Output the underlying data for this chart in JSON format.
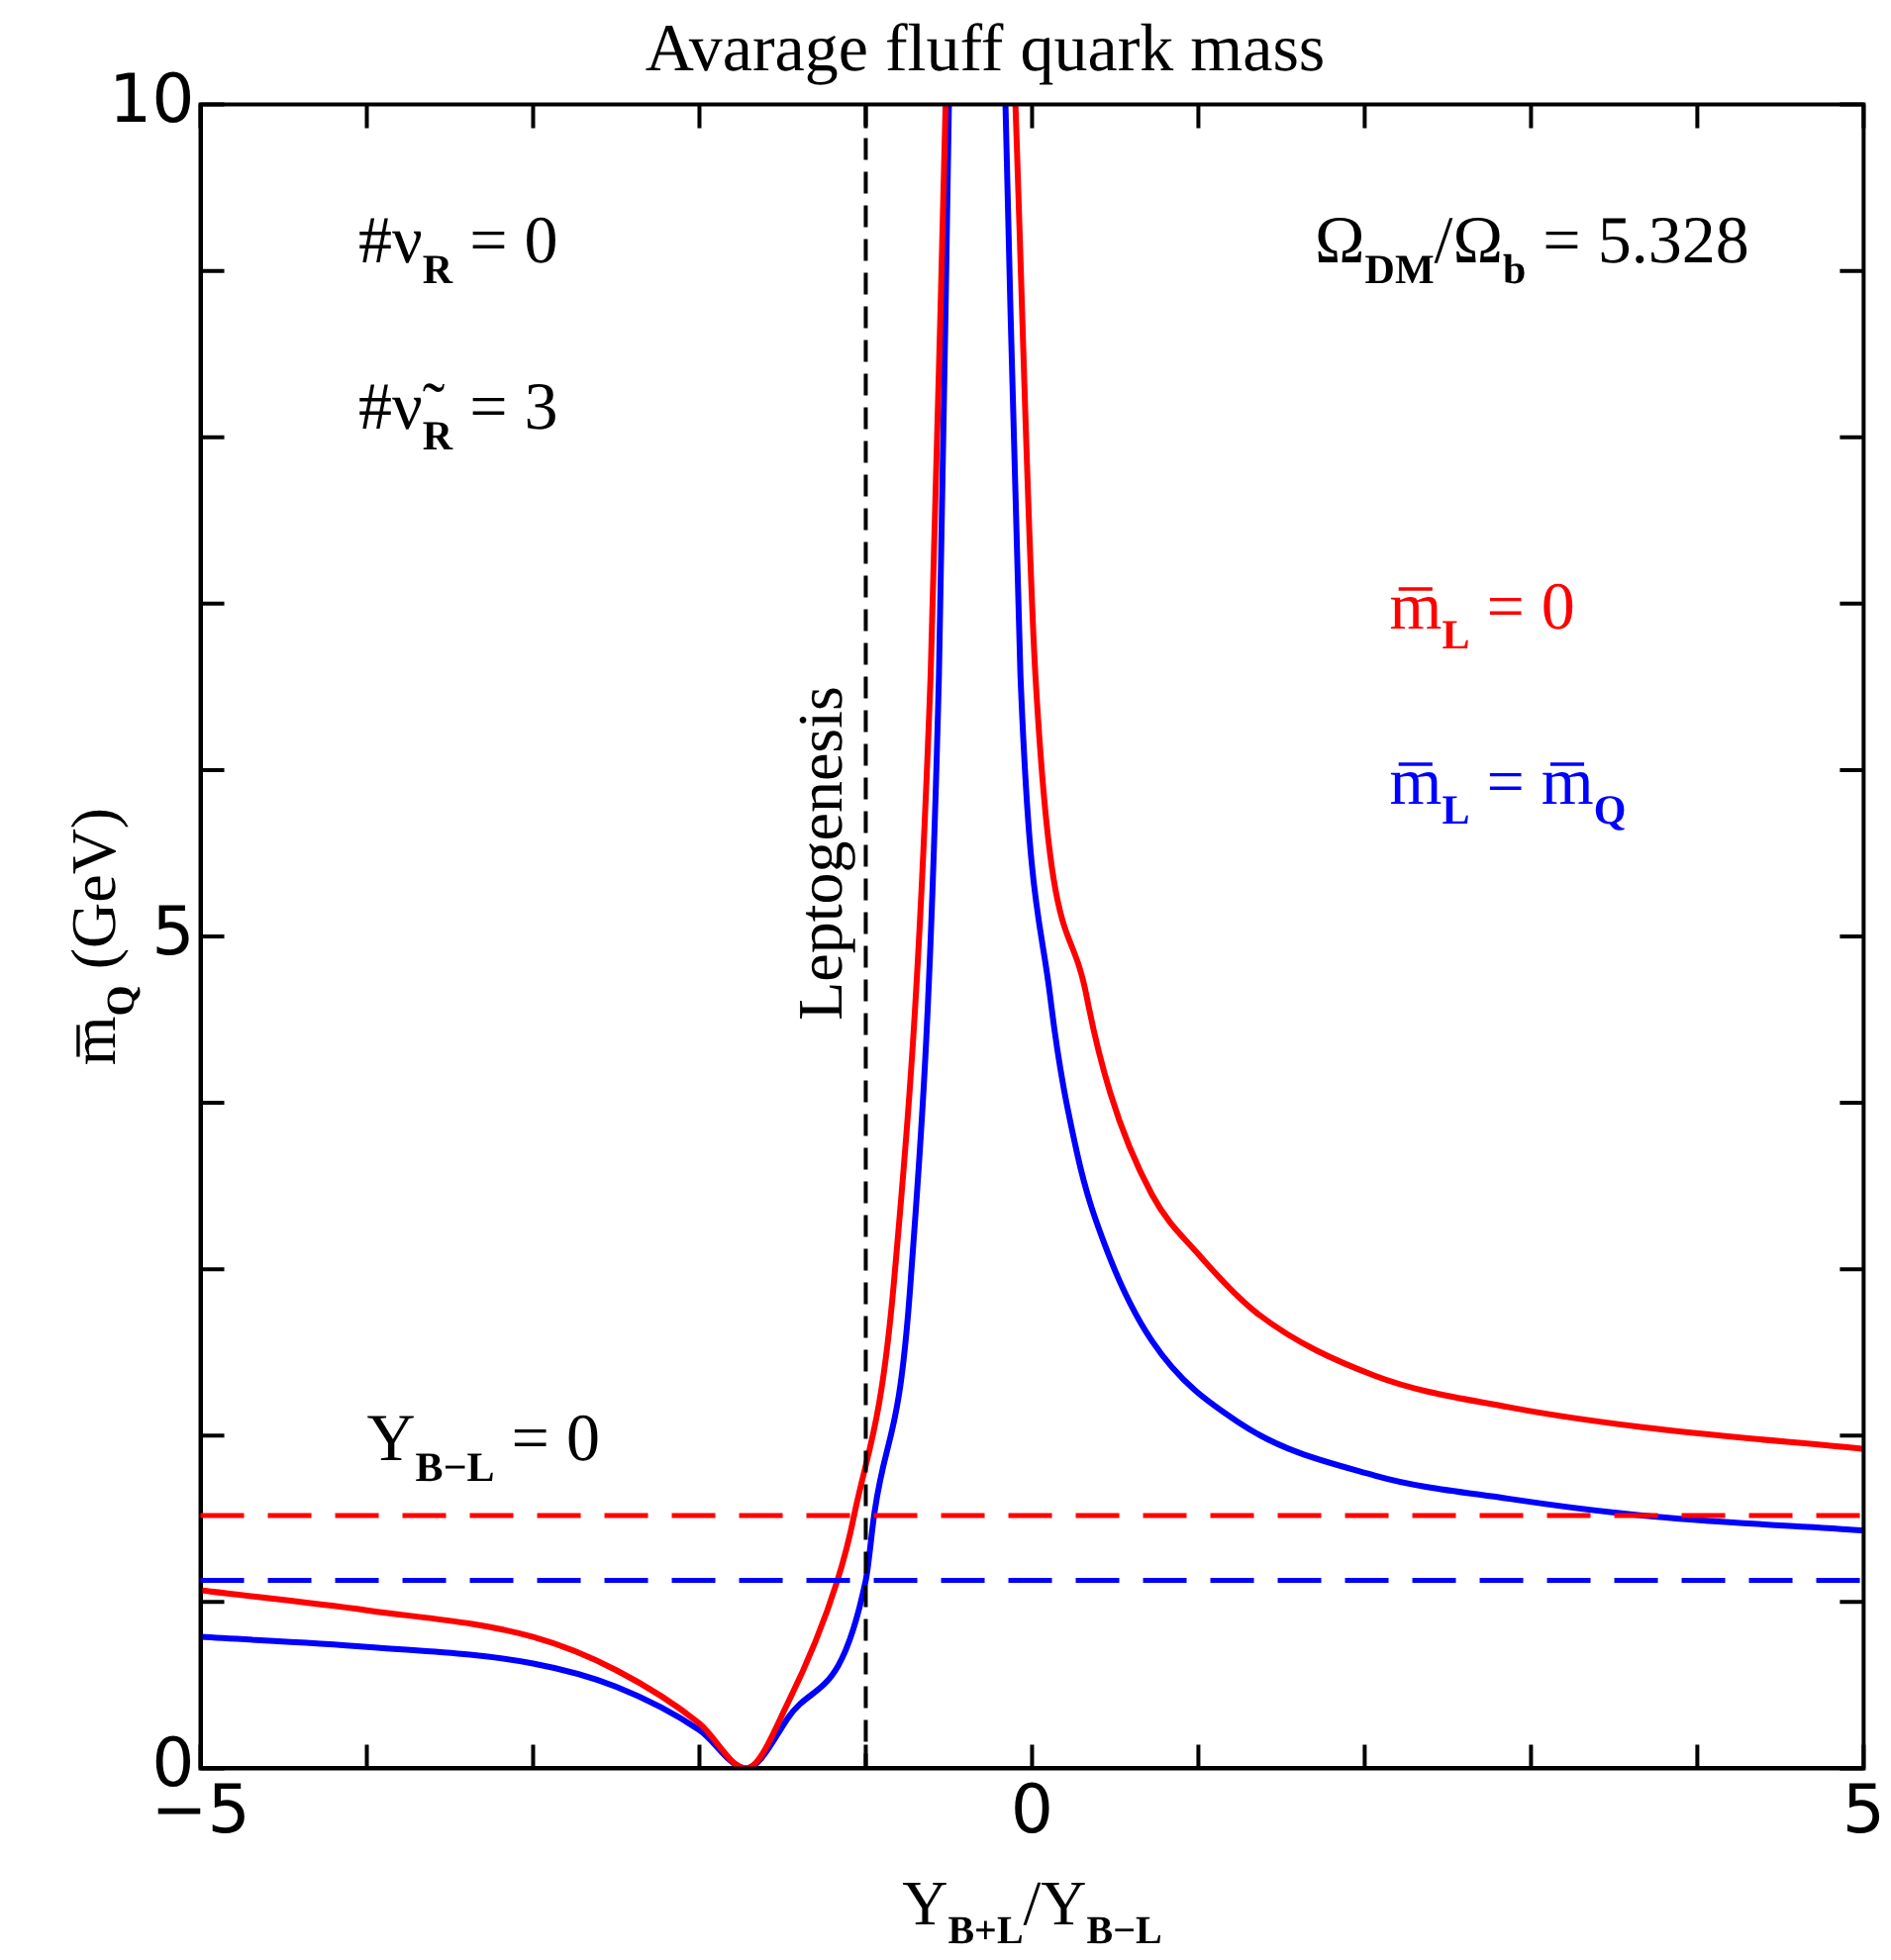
{
  "chart_data": {
    "type": "line",
    "title": "Avarage fluff quark mass",
    "xlabel": "Y$_{B+L}$/Y$_{B−L}$",
    "ylabel": "m̅$_{Q}$ (GeV)",
    "xlim": [
      -5,
      5
    ],
    "ylim": [
      0,
      10
    ],
    "xticks": [
      -5,
      {
        "value": -4,
        "label": null
      },
      {
        "value": -3,
        "label": null
      },
      {
        "value": -2,
        "label": null
      },
      {
        "value": -1,
        "label": null
      },
      0,
      {
        "value": 1,
        "label": null
      },
      {
        "value": 2,
        "label": null
      },
      {
        "value": 3,
        "label": null
      },
      {
        "value": 4,
        "label": null
      },
      5
    ],
    "yticks": [
      0,
      {
        "value": 1,
        "label": null
      },
      {
        "value": 2,
        "label": null
      },
      {
        "value": 3,
        "label": null
      },
      {
        "value": 4,
        "label": null
      },
      5,
      {
        "value": 6,
        "label": null
      },
      {
        "value": 7,
        "label": null
      },
      {
        "value": 8,
        "label": null
      },
      {
        "value": 9,
        "label": null
      },
      10
    ],
    "marker": "none",
    "line_style": "solid",
    "legend": "top right",
    "series": [
      {
        "name": "m̅$_{L}$ = 0",
        "color": "#ff0000",
        "x": [
          -5,
          -4,
          -3,
          -2.5,
          -2,
          -1.72,
          -1.47,
          -1.17,
          -1.07,
          -0.83,
          -0.61,
          -0.52,
          -0.3,
          -0.1,
          0.02,
          0.33,
          0.47,
          0.72,
          1.0,
          1.36,
          2.06,
          2.87,
          3.67,
          5
        ],
        "values": [
          1.07,
          0.95,
          0.79,
          0.59,
          0.27,
          0,
          0.39,
          1.13,
          1.52,
          2.93,
          6.57,
          10,
          null,
          10,
          6.57,
          4.63,
          4.06,
          3.45,
          3.09,
          2.73,
          2.36,
          2.17,
          2.05,
          1.92
        ]
      },
      {
        "name": "m̅$_{L}$ = m̅$_{Q}$",
        "color": "#0000ff",
        "x": [
          -5,
          -4,
          -3,
          -2.5,
          -2,
          -1.72,
          -1.47,
          -1.0,
          -0.95,
          -0.73,
          -0.56,
          -0.5,
          -0.3,
          -0.16,
          -0.07,
          0.11,
          0.27,
          0.44,
          0.72,
          1.24,
          2.06,
          2.87,
          3.67,
          5
        ],
        "values": [
          0.79,
          0.73,
          0.63,
          0.49,
          0.23,
          0,
          0.3,
          1.13,
          1.52,
          2.93,
          6.57,
          10,
          null,
          10,
          6.57,
          4.63,
          3.7,
          3.14,
          2.57,
          2.08,
          1.76,
          1.62,
          1.52,
          1.43
        ]
      }
    ],
    "ref_lines": [
      {
        "axis": "y",
        "value": 1.52,
        "color": "#ff0000",
        "line_style": "dashed"
      },
      {
        "axis": "y",
        "value": 1.13,
        "color": "#0000ff",
        "line_style": "dashed"
      },
      {
        "axis": "x",
        "value": -1,
        "label": "Leptogenesis",
        "color": "#000000",
        "line_style": "dashed"
      }
    ],
    "annotations": [
      "#ν$_{R}$ = 0",
      "#ν̃$_{R}$ = 3",
      "Ω$_{DM}$/Ω$_{b}$ = 5.328",
      "Y$_{B−L}$ = 0"
    ]
  }
}
